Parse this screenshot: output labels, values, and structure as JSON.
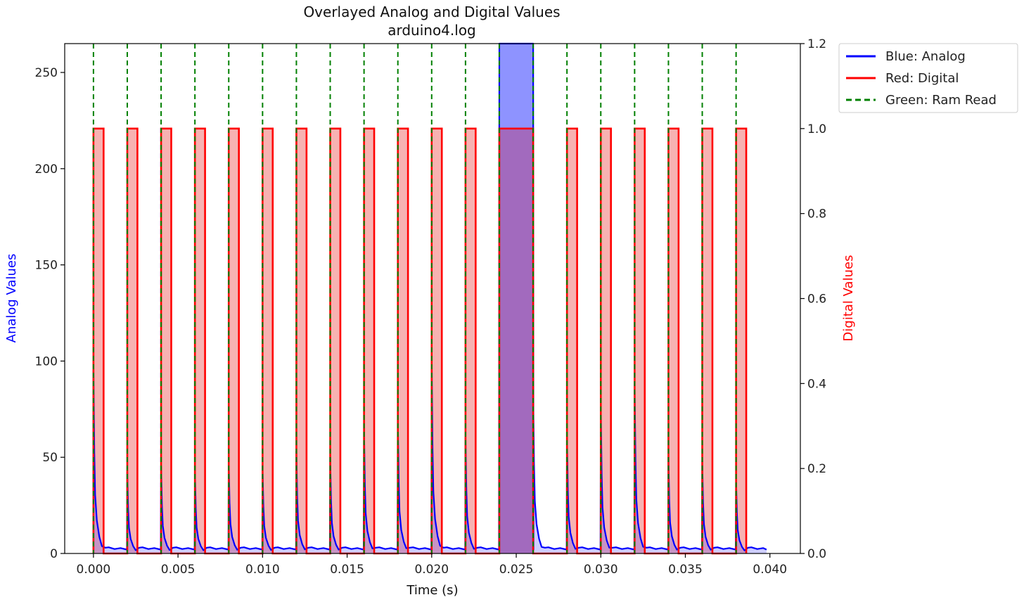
{
  "chart_data": {
    "type": "line",
    "title": "Overlayed Analog and Digital Values",
    "subtitle": "arduino4.log",
    "xlabel": "Time (s)",
    "ylabel_left": "Analog Values",
    "ylabel_right": "Digital Values",
    "xlim": [
      -0.0017,
      0.0418
    ],
    "ylim_left": [
      0,
      265
    ],
    "ylim_right": [
      0,
      1.2
    ],
    "x_ticks": [
      "0.000",
      "0.005",
      "0.010",
      "0.015",
      "0.020",
      "0.025",
      "0.030",
      "0.035",
      "0.040"
    ],
    "x_tick_values": [
      0,
      0.005,
      0.01,
      0.015,
      0.02,
      0.025,
      0.03,
      0.035,
      0.04
    ],
    "y_ticks_left": [
      "0",
      "50",
      "100",
      "150",
      "200",
      "250"
    ],
    "y_tick_values_left": [
      0,
      50,
      100,
      150,
      200,
      250
    ],
    "y_ticks_right": [
      "0.0",
      "0.2",
      "0.4",
      "0.6",
      "0.8",
      "1.0",
      "1.2"
    ],
    "y_tick_values_right": [
      0,
      0.2,
      0.4,
      0.6,
      0.8,
      1.0,
      1.2
    ],
    "grid": false,
    "legend_position": "outside-top-right",
    "legend": [
      {
        "label": "Blue: Analog",
        "color": "#0000ff",
        "style": "solid"
      },
      {
        "label": "Red: Digital",
        "color": "#ff0000",
        "style": "solid"
      },
      {
        "label": "Green: Ram Read",
        "color": "#008000",
        "style": "dashed"
      }
    ],
    "digital_pulses": [
      {
        "start": 0.0,
        "end": 0.0006
      },
      {
        "start": 0.002,
        "end": 0.0026
      },
      {
        "start": 0.004,
        "end": 0.0046
      },
      {
        "start": 0.006,
        "end": 0.0066
      },
      {
        "start": 0.008,
        "end": 0.0086
      },
      {
        "start": 0.01,
        "end": 0.0106
      },
      {
        "start": 0.012,
        "end": 0.0126
      },
      {
        "start": 0.014,
        "end": 0.0146
      },
      {
        "start": 0.016,
        "end": 0.0166
      },
      {
        "start": 0.018,
        "end": 0.0186
      },
      {
        "start": 0.02,
        "end": 0.0206
      },
      {
        "start": 0.022,
        "end": 0.0226
      },
      {
        "start": 0.024,
        "end": 0.026
      },
      {
        "start": 0.028,
        "end": 0.0286
      },
      {
        "start": 0.03,
        "end": 0.0306
      },
      {
        "start": 0.032,
        "end": 0.0326
      },
      {
        "start": 0.034,
        "end": 0.0346
      },
      {
        "start": 0.036,
        "end": 0.0366
      },
      {
        "start": 0.038,
        "end": 0.0386
      }
    ],
    "digital_high_value": 1.0,
    "ram_read_times": [
      0.0,
      0.002,
      0.004,
      0.006,
      0.008,
      0.01,
      0.012,
      0.014,
      0.016,
      0.018,
      0.02,
      0.022,
      0.024,
      0.026,
      0.028,
      0.03,
      0.032,
      0.034,
      0.036,
      0.038
    ],
    "analog_peaks": [
      {
        "x": 0.0,
        "y": 95
      },
      {
        "x": 0.002,
        "y": 42
      },
      {
        "x": 0.004,
        "y": 45
      },
      {
        "x": 0.006,
        "y": 42
      },
      {
        "x": 0.008,
        "y": 48
      },
      {
        "x": 0.01,
        "y": 45
      },
      {
        "x": 0.012,
        "y": 53
      },
      {
        "x": 0.014,
        "y": 50
      },
      {
        "x": 0.016,
        "y": 65
      },
      {
        "x": 0.018,
        "y": 68
      },
      {
        "x": 0.02,
        "y": 100
      },
      {
        "x": 0.022,
        "y": 60
      },
      {
        "x": 0.026,
        "y": 85
      },
      {
        "x": 0.028,
        "y": 60
      },
      {
        "x": 0.03,
        "y": 75
      },
      {
        "x": 0.032,
        "y": 88
      },
      {
        "x": 0.034,
        "y": 50
      },
      {
        "x": 0.036,
        "y": 48
      },
      {
        "x": 0.038,
        "y": 38
      }
    ],
    "analog_saturated": {
      "start": 0.024,
      "end": 0.026,
      "value": 265
    },
    "analog_baseline": 2,
    "analog_end_x": 0.0398
  }
}
